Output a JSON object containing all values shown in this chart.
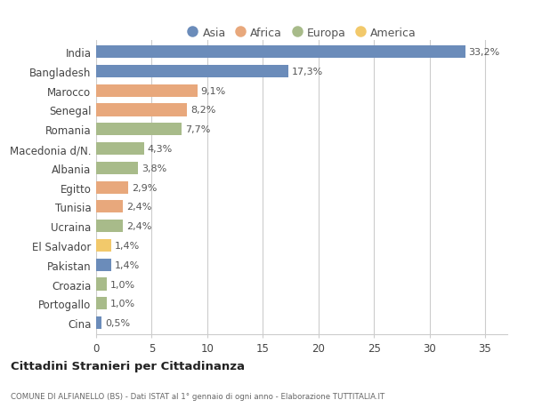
{
  "categories": [
    "India",
    "Bangladesh",
    "Marocco",
    "Senegal",
    "Romania",
    "Macedonia d/N.",
    "Albania",
    "Egitto",
    "Tunisia",
    "Ucraina",
    "El Salvador",
    "Pakistan",
    "Croazia",
    "Portogallo",
    "Cina"
  ],
  "values": [
    33.2,
    17.3,
    9.1,
    8.2,
    7.7,
    4.3,
    3.8,
    2.9,
    2.4,
    2.4,
    1.4,
    1.4,
    1.0,
    1.0,
    0.5
  ],
  "labels": [
    "33,2%",
    "17,3%",
    "9,1%",
    "8,2%",
    "7,7%",
    "4,3%",
    "3,8%",
    "2,9%",
    "2,4%",
    "2,4%",
    "1,4%",
    "1,4%",
    "1,0%",
    "1,0%",
    "0,5%"
  ],
  "colors": [
    "#6b8cba",
    "#6b8cba",
    "#e8a87c",
    "#e8a87c",
    "#a8bb8a",
    "#a8bb8a",
    "#a8bb8a",
    "#e8a87c",
    "#e8a87c",
    "#a8bb8a",
    "#f2c96b",
    "#6b8cba",
    "#a8bb8a",
    "#a8bb8a",
    "#6b8cba"
  ],
  "legend_labels": [
    "Asia",
    "Africa",
    "Europa",
    "America"
  ],
  "legend_colors": [
    "#6b8cba",
    "#e8a87c",
    "#a8bb8a",
    "#f2c96b"
  ],
  "title": "Cittadini Stranieri per Cittadinanza",
  "subtitle": "COMUNE DI ALFIANELLO (BS) - Dati ISTAT al 1° gennaio di ogni anno - Elaborazione TUTTITALIA.IT",
  "xlim": [
    0,
    37
  ],
  "xticks": [
    0,
    5,
    10,
    15,
    20,
    25,
    30,
    35
  ],
  "background_color": "#ffffff",
  "grid_color": "#cccccc",
  "bar_height": 0.65,
  "label_fontsize": 8,
  "tick_fontsize": 8.5
}
